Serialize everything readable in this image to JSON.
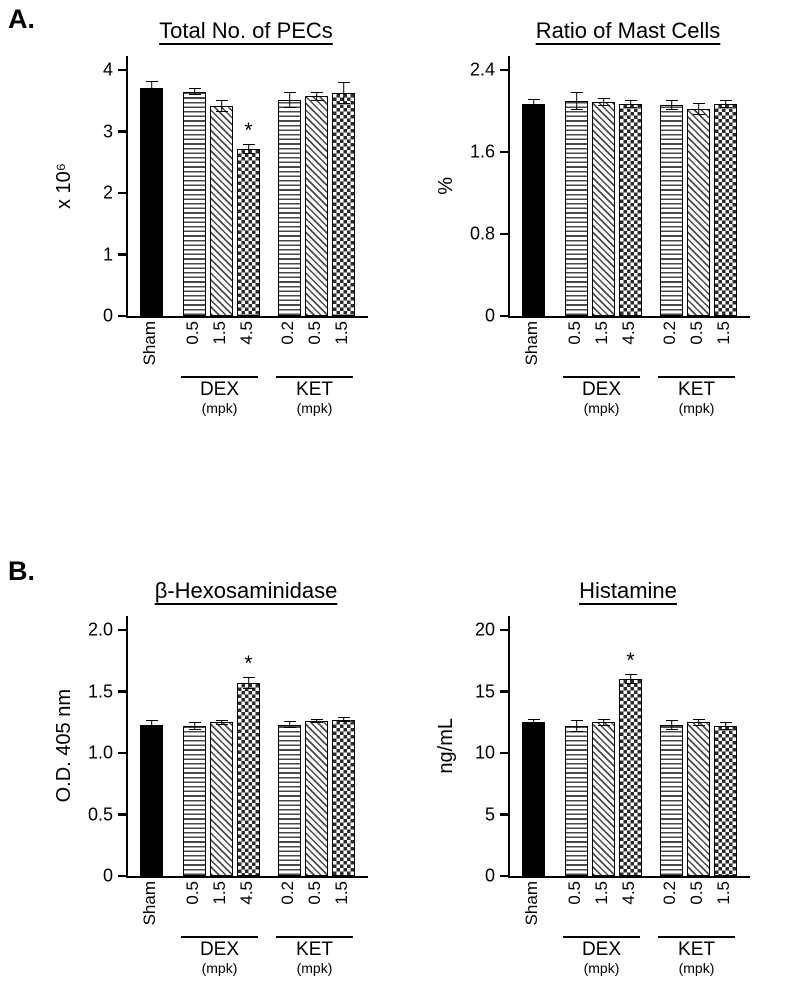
{
  "panels": [
    {
      "label": "A."
    },
    {
      "label": "B."
    }
  ],
  "colors": {
    "axis": "#000000",
    "bar_outline": "#000000",
    "solid_bar_fill": "#000000",
    "pattern_stroke": "#4a4a4a",
    "background": "#ffffff"
  },
  "chart_data": [
    {
      "type": "bar",
      "title": "Total No. of PECs",
      "ylabel": "x 10⁶",
      "ylim": [
        0,
        4
      ],
      "yticks": [
        0,
        1,
        2,
        3,
        4
      ],
      "ytick_labels": [
        "0",
        "1",
        "2",
        "3",
        "4"
      ],
      "categories": [
        "Sham",
        "0.5",
        "1.5",
        "4.5",
        "0.2",
        "0.5",
        "1.5"
      ],
      "values": [
        3.7,
        3.65,
        3.42,
        2.72,
        3.52,
        3.57,
        3.62
      ],
      "errors": [
        0.12,
        0.06,
        0.1,
        0.08,
        0.13,
        0.07,
        0.18
      ],
      "significance": [
        "",
        "",
        "",
        "*",
        "",
        "",
        ""
      ],
      "bar_patterns": [
        "solid-black",
        "horizontal-stripes",
        "diagonal-stripes",
        "checkerboard",
        "horizontal-stripes",
        "diagonal-stripes",
        "checkerboard"
      ],
      "groups": [
        {
          "label": "DEX",
          "unit": "(mpk)",
          "bars": [
            1,
            3
          ]
        },
        {
          "label": "KET",
          "unit": "(mpk)",
          "bars": [
            4,
            6
          ]
        }
      ],
      "legend_position": "none",
      "grid": false
    },
    {
      "type": "bar",
      "title": "Ratio of Mast Cells",
      "ylabel": "%",
      "ylim": [
        0,
        2.4
      ],
      "yticks": [
        0,
        0.8,
        1.6,
        2.4
      ],
      "ytick_labels": [
        "0",
        "0.8",
        "1.6",
        "2.4"
      ],
      "categories": [
        "Sham",
        "0.5",
        "1.5",
        "4.5",
        "0.2",
        "0.5",
        "1.5"
      ],
      "values": [
        2.07,
        2.1,
        2.09,
        2.07,
        2.06,
        2.02,
        2.07
      ],
      "errors": [
        0.05,
        0.09,
        0.04,
        0.04,
        0.05,
        0.06,
        0.04
      ],
      "significance": [
        "",
        "",
        "",
        "",
        "",
        "",
        ""
      ],
      "bar_patterns": [
        "solid-black",
        "horizontal-stripes",
        "diagonal-stripes",
        "checkerboard",
        "horizontal-stripes",
        "diagonal-stripes",
        "checkerboard"
      ],
      "groups": [
        {
          "label": "DEX",
          "unit": "(mpk)",
          "bars": [
            1,
            3
          ]
        },
        {
          "label": "KET",
          "unit": "(mpk)",
          "bars": [
            4,
            6
          ]
        }
      ],
      "legend_position": "none",
      "grid": false
    },
    {
      "type": "bar",
      "title": "β-Hexosaminidase",
      "ylabel": "O.D. 405 nm",
      "ylim": [
        0,
        2.0
      ],
      "yticks": [
        0,
        0.5,
        1.0,
        1.5,
        2.0
      ],
      "ytick_labels": [
        "0",
        "0.5",
        "1.0",
        "1.5",
        "2.0"
      ],
      "categories": [
        "Sham",
        "0.5",
        "1.5",
        "4.5",
        "0.2",
        "0.5",
        "1.5"
      ],
      "values": [
        1.23,
        1.22,
        1.25,
        1.57,
        1.23,
        1.26,
        1.27
      ],
      "errors": [
        0.04,
        0.03,
        0.02,
        0.05,
        0.03,
        0.02,
        0.02
      ],
      "significance": [
        "",
        "",
        "",
        "*",
        "",
        "",
        ""
      ],
      "bar_patterns": [
        "solid-black",
        "horizontal-stripes",
        "diagonal-stripes",
        "checkerboard",
        "horizontal-stripes",
        "diagonal-stripes",
        "checkerboard"
      ],
      "groups": [
        {
          "label": "DEX",
          "unit": "(mpk)",
          "bars": [
            1,
            3
          ]
        },
        {
          "label": "KET",
          "unit": "(mpk)",
          "bars": [
            4,
            6
          ]
        }
      ],
      "legend_position": "none",
      "grid": false
    },
    {
      "type": "bar",
      "title": "Histamine",
      "ylabel": "ng/mL",
      "ylim": [
        0,
        20
      ],
      "yticks": [
        0,
        5,
        10,
        15,
        20
      ],
      "ytick_labels": [
        "0",
        "5",
        "10",
        "15",
        "20"
      ],
      "categories": [
        "Sham",
        "0.5",
        "1.5",
        "4.5",
        "0.2",
        "0.5",
        "1.5"
      ],
      "values": [
        12.5,
        12.2,
        12.5,
        16.0,
        12.3,
        12.5,
        12.2
      ],
      "errors": [
        0.3,
        0.5,
        0.3,
        0.4,
        0.4,
        0.3,
        0.3
      ],
      "significance": [
        "",
        "",
        "",
        "*",
        "",
        "",
        ""
      ],
      "bar_patterns": [
        "solid-black",
        "horizontal-stripes",
        "diagonal-stripes",
        "checkerboard",
        "horizontal-stripes",
        "diagonal-stripes",
        "checkerboard"
      ],
      "groups": [
        {
          "label": "DEX",
          "unit": "(mpk)",
          "bars": [
            1,
            3
          ]
        },
        {
          "label": "KET",
          "unit": "(mpk)",
          "bars": [
            4,
            6
          ]
        }
      ],
      "legend_position": "none",
      "grid": false
    }
  ]
}
